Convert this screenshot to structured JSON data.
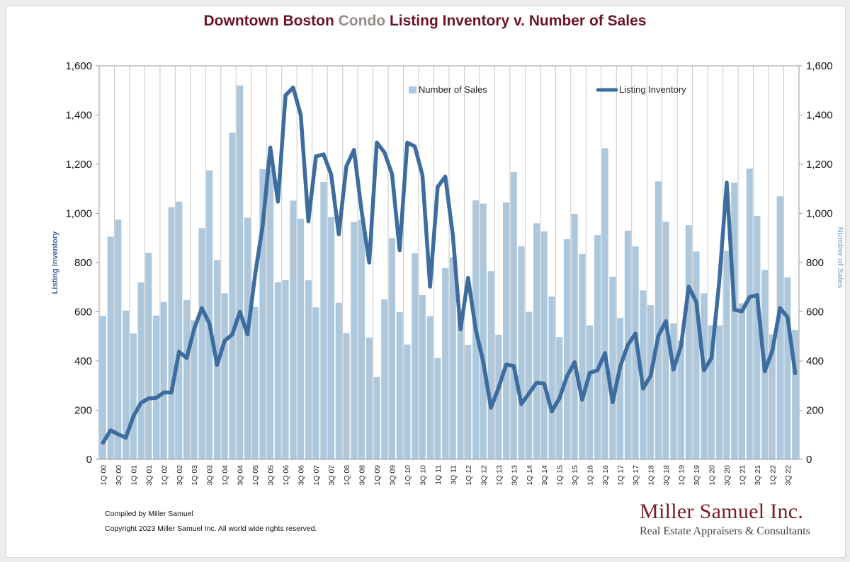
{
  "colors": {
    "title_dark": "#6b1524",
    "title_condo": "#9c8a8a",
    "bars": "#adc7dc",
    "line": "#3d6c9e",
    "left_axis_title": "#3d6c9e",
    "right_axis_title": "#9ab8d2",
    "brand": "#7a1c28"
  },
  "title": {
    "part1": "Downtown Boston ",
    "part2": "Condo",
    "part3": " Listing Inventory v. Number of Sales"
  },
  "footer": {
    "compiled": "Compiled by Miller Samuel",
    "copyright": "Copyright 2023 Miller Samuel Inc.  All world wide rights reserved."
  },
  "brand": {
    "name": "Miller Samuel Inc.",
    "tagline": "Real Estate Appraisers & Consultants"
  },
  "chart_data": {
    "type": "bar",
    "title": "Downtown Boston Condo Listing Inventory v. Number of Sales",
    "ylabel_left": "Listing Inventory",
    "ylabel_right": "Number of Sales",
    "ylim": [
      0,
      1600
    ],
    "y_ticks": [
      "0",
      "200",
      "400",
      "600",
      "800",
      "1,000",
      "1,200",
      "1,400",
      "1,600"
    ],
    "grid": "vertical",
    "legend_position": "top-center",
    "categories": [
      "1Q 00",
      "2Q 00",
      "3Q 00",
      "4Q 00",
      "1Q 01",
      "2Q 01",
      "3Q 01",
      "4Q 01",
      "1Q 02",
      "2Q 02",
      "3Q 02",
      "4Q 02",
      "1Q 03",
      "2Q 03",
      "3Q 03",
      "4Q 03",
      "1Q 04",
      "2Q 04",
      "3Q 04",
      "4Q 04",
      "1Q 05",
      "2Q 05",
      "3Q 05",
      "4Q 05",
      "1Q 06",
      "2Q 06",
      "3Q 06",
      "4Q 06",
      "1Q 07",
      "2Q 07",
      "3Q 07",
      "4Q 07",
      "1Q 08",
      "2Q 08",
      "3Q 08",
      "4Q 08",
      "1Q 09",
      "2Q 09",
      "3Q 09",
      "4Q 09",
      "1Q 10",
      "2Q 10",
      "3Q 10",
      "4Q 10",
      "1Q 11",
      "2Q 11",
      "3Q 11",
      "4Q 11",
      "1Q 12",
      "2Q 12",
      "3Q 12",
      "4Q 12",
      "1Q 13",
      "2Q 13",
      "3Q 13",
      "4Q 13",
      "1Q 14",
      "2Q 14",
      "3Q 14",
      "4Q 14",
      "1Q 15",
      "2Q 15",
      "3Q 15",
      "4Q 15",
      "1Q 16",
      "2Q 16",
      "3Q 16",
      "4Q 16",
      "1Q 17",
      "2Q 17",
      "3Q 17",
      "4Q 17",
      "1Q 18",
      "2Q 18",
      "3Q 18",
      "4Q 18",
      "1Q 19",
      "2Q 19",
      "3Q 19",
      "4Q 19",
      "1Q 20",
      "2Q 20",
      "3Q 20",
      "4Q 20",
      "1Q 21",
      "2Q 21",
      "3Q 21",
      "4Q 21",
      "1Q 22",
      "2Q 22",
      "3Q 22",
      "4Q 22"
    ],
    "x_tick_labels": [
      "1Q 00",
      "3Q 00",
      "1Q 01",
      "3Q 01",
      "1Q 02",
      "3Q 02",
      "1Q 03",
      "3Q 03",
      "1Q 04",
      "3Q 04",
      "1Q 05",
      "3Q 05",
      "1Q 06",
      "3Q 06",
      "1Q 07",
      "3Q 07",
      "1Q 08",
      "3Q 08",
      "1Q 09",
      "3Q 09",
      "1Q 10",
      "3Q 10",
      "1Q 11",
      "3Q 11",
      "1Q 12",
      "3Q 12",
      "1Q 13",
      "3Q 13",
      "1Q 14",
      "3Q 14",
      "1Q 15",
      "3Q 15",
      "1Q 16",
      "3Q 16",
      "1Q 17",
      "3Q 17",
      "1Q 18",
      "3Q 18",
      "1Q 19",
      "3Q 19",
      "1Q 20",
      "3Q 20",
      "1Q 21",
      "3Q 21",
      "1Q 22",
      "3Q 22"
    ],
    "series": [
      {
        "name": "Number of Sales",
        "type": "bar",
        "axis": "right",
        "values": [
          583,
          905,
          975,
          605,
          512,
          720,
          840,
          585,
          640,
          1025,
          1048,
          648,
          565,
          940,
          1175,
          810,
          675,
          1328,
          1520,
          983,
          620,
          1180,
          1178,
          720,
          728,
          1052,
          978,
          728,
          618,
          1128,
          985,
          637,
          513,
          965,
          975,
          495,
          335,
          650,
          900,
          598,
          467,
          838,
          668,
          582,
          412,
          778,
          822,
          598,
          465,
          1053,
          1040,
          765,
          507,
          1045,
          1168,
          866,
          600,
          960,
          927,
          662,
          497,
          895,
          998,
          835,
          545,
          912,
          1265,
          743,
          575,
          930,
          866,
          687,
          627,
          1130,
          966,
          553,
          484,
          952,
          845,
          675,
          545,
          545,
          848,
          1125,
          635,
          1182,
          990,
          770,
          508,
          1070,
          740,
          527
        ]
      },
      {
        "name": "Listing Inventory",
        "type": "line",
        "axis": "left",
        "values": [
          68,
          118,
          102,
          88,
          175,
          230,
          248,
          250,
          272,
          272,
          438,
          412,
          532,
          615,
          552,
          384,
          482,
          508,
          600,
          508,
          750,
          952,
          1268,
          1048,
          1480,
          1512,
          1400,
          968,
          1232,
          1240,
          1158,
          915,
          1192,
          1258,
          1010,
          800,
          1288,
          1248,
          1160,
          850,
          1288,
          1272,
          1155,
          702,
          1108,
          1150,
          910,
          528,
          738,
          528,
          395,
          210,
          290,
          385,
          380,
          225,
          268,
          312,
          308,
          195,
          248,
          338,
          395,
          242,
          352,
          362,
          432,
          232,
          378,
          465,
          512,
          288,
          340,
          502,
          562,
          365,
          462,
          702,
          640,
          362,
          412,
          718,
          1125,
          608,
          602,
          660,
          668,
          358,
          442,
          615,
          578,
          350
        ]
      }
    ]
  }
}
